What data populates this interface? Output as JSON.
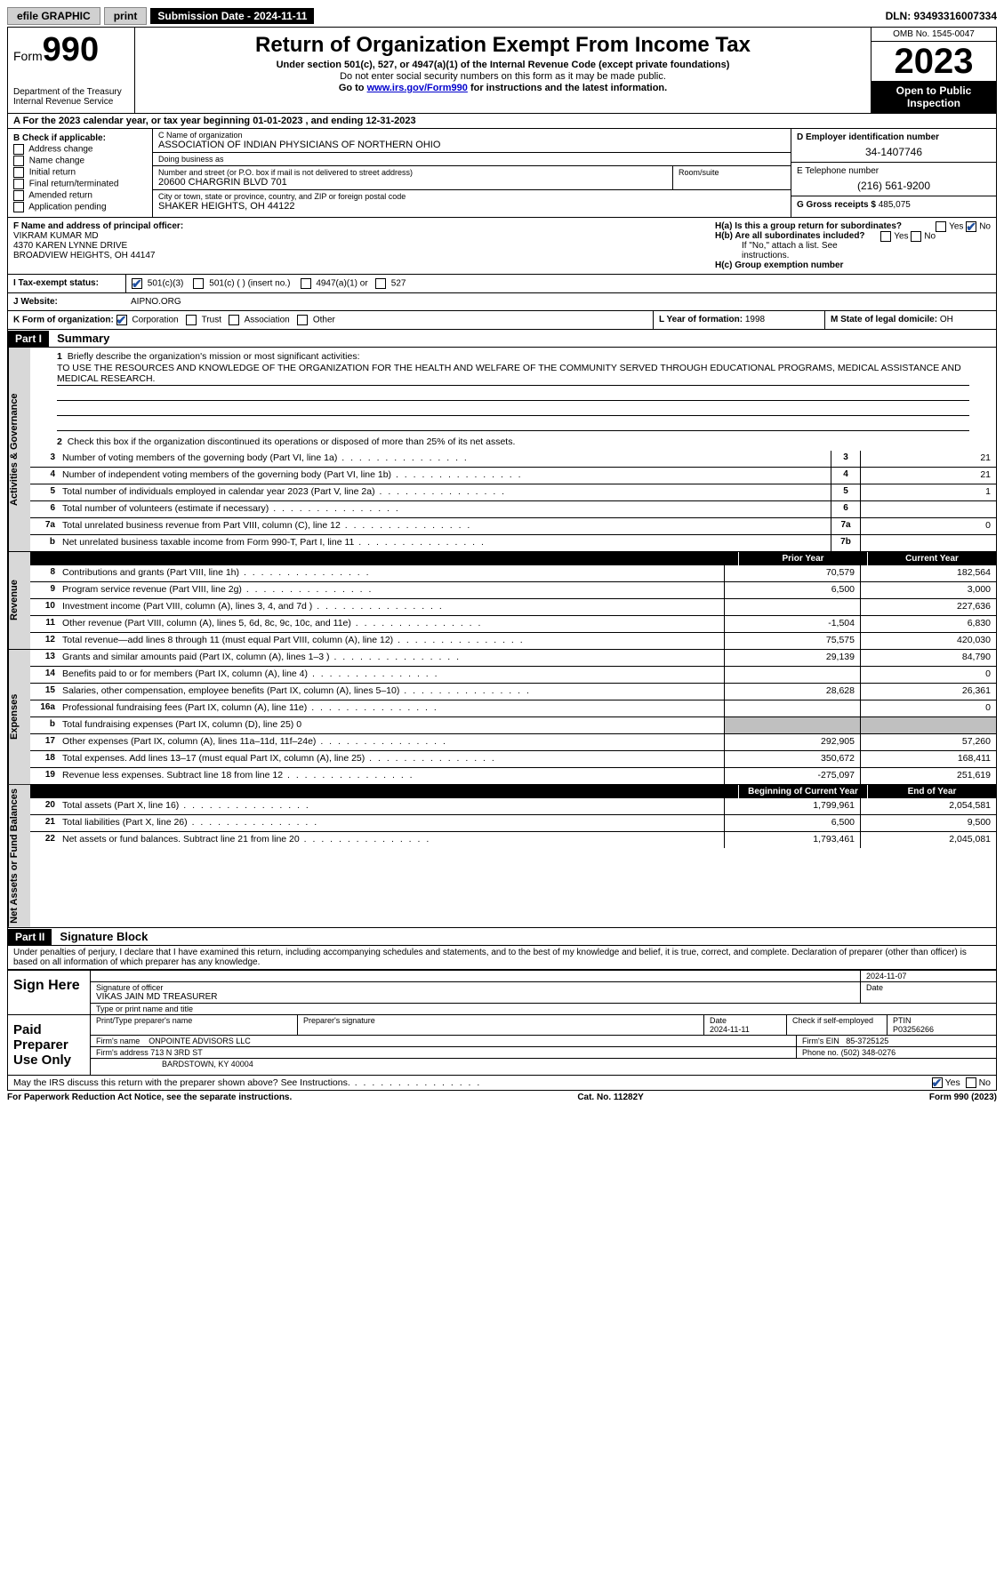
{
  "topbar": {
    "efile": "efile GRAPHIC",
    "print": "print",
    "submission": "Submission Date - 2024-11-11",
    "dln": "DLN: 93493316007334"
  },
  "header": {
    "form_prefix": "Form",
    "form_number": "990",
    "dept": "Department of the Treasury",
    "irs": "Internal Revenue Service",
    "title": "Return of Organization Exempt From Income Tax",
    "sub1": "Under section 501(c), 527, or 4947(a)(1) of the Internal Revenue Code (except private foundations)",
    "sub2": "Do not enter social security numbers on this form as it may be made public.",
    "sub3_pre": "Go to ",
    "sub3_link": "www.irs.gov/Form990",
    "sub3_post": " for instructions and the latest information.",
    "omb": "OMB No. 1545-0047",
    "year": "2023",
    "inspect": "Open to Public Inspection"
  },
  "row_a": "A For the 2023 calendar year, or tax year beginning 01-01-2023   , and ending 12-31-2023",
  "col_b": {
    "title": "B Check if applicable:",
    "items": [
      "Address change",
      "Name change",
      "Initial return",
      "Final return/terminated",
      "Amended return",
      "Application pending"
    ]
  },
  "col_c": {
    "name_label": "C Name of organization",
    "name": "ASSOCIATION OF INDIAN PHYSICIANS OF NORTHERN OHIO",
    "dba_label": "Doing business as",
    "dba": "",
    "street_label": "Number and street (or P.O. box if mail is not delivered to street address)",
    "street": "20600 CHARGRIN BLVD 701",
    "room_label": "Room/suite",
    "room": "",
    "city_label": "City or town, state or province, country, and ZIP or foreign postal code",
    "city": "SHAKER HEIGHTS, OH  44122"
  },
  "col_de": {
    "d_label": "D Employer identification number",
    "d_val": "34-1407746",
    "e_label": "E Telephone number",
    "e_val": "(216) 561-9200",
    "g_label": "G Gross receipts $",
    "g_val": "485,075"
  },
  "row_f": {
    "label": "F Name and address of principal officer:",
    "name": "VIKRAM KUMAR MD",
    "addr1": "4370 KAREN LYNNE DRIVE",
    "addr2": "BROADVIEW HEIGHTS, OH  44147"
  },
  "row_h": {
    "ha": "H(a) Is this a group return for subordinates?",
    "hb": "H(b) Are all subordinates included?",
    "hb_note": "If \"No,\" attach a list. See instructions.",
    "hc": "H(c) Group exemption number",
    "yes": "Yes",
    "no": "No"
  },
  "row_i": {
    "label": "I   Tax-exempt status:",
    "o1": "501(c)(3)",
    "o2": "501(c) (  ) (insert no.)",
    "o3": "4947(a)(1) or",
    "o4": "527"
  },
  "row_j": {
    "label": "J   Website:",
    "val": "AIPNO.ORG"
  },
  "row_k": {
    "label": "K Form of organization:",
    "o1": "Corporation",
    "o2": "Trust",
    "o3": "Association",
    "o4": "Other",
    "l_label": "L Year of formation:",
    "l_val": "1998",
    "m_label": "M State of legal domicile:",
    "m_val": "OH"
  },
  "part1": {
    "hdr": "Part I",
    "title": "Summary",
    "q1": "Briefly describe the organization's mission or most significant activities:",
    "mission": "TO USE THE RESOURCES AND KNOWLEDGE OF THE ORGANIZATION FOR THE HEALTH AND WELFARE OF THE COMMUNITY SERVED THROUGH EDUCATIONAL PROGRAMS, MEDICAL ASSISTANCE AND MEDICAL RESEARCH.",
    "q2": "Check this box      if the organization discontinued its operations or disposed of more than 25% of its net assets.",
    "tabs": {
      "gov": "Activities & Governance",
      "rev": "Revenue",
      "exp": "Expenses",
      "net": "Net Assets or Fund Balances"
    },
    "col_prior": "Prior Year",
    "col_curr": "Current Year",
    "col_begin": "Beginning of Current Year",
    "col_end": "End of Year",
    "lines_gov": [
      {
        "n": "3",
        "d": "Number of voting members of the governing body (Part VI, line 1a)",
        "box": "3",
        "v": "21"
      },
      {
        "n": "4",
        "d": "Number of independent voting members of the governing body (Part VI, line 1b)",
        "box": "4",
        "v": "21"
      },
      {
        "n": "5",
        "d": "Total number of individuals employed in calendar year 2023 (Part V, line 2a)",
        "box": "5",
        "v": "1"
      },
      {
        "n": "6",
        "d": "Total number of volunteers (estimate if necessary)",
        "box": "6",
        "v": ""
      },
      {
        "n": "7a",
        "d": "Total unrelated business revenue from Part VIII, column (C), line 12",
        "box": "7a",
        "v": "0"
      },
      {
        "n": "b",
        "d": "Net unrelated business taxable income from Form 990-T, Part I, line 11",
        "box": "7b",
        "v": ""
      }
    ],
    "lines_rev": [
      {
        "n": "8",
        "d": "Contributions and grants (Part VIII, line 1h)",
        "p": "70,579",
        "c": "182,564"
      },
      {
        "n": "9",
        "d": "Program service revenue (Part VIII, line 2g)",
        "p": "6,500",
        "c": "3,000"
      },
      {
        "n": "10",
        "d": "Investment income (Part VIII, column (A), lines 3, 4, and 7d )",
        "p": "",
        "c": "227,636"
      },
      {
        "n": "11",
        "d": "Other revenue (Part VIII, column (A), lines 5, 6d, 8c, 9c, 10c, and 11e)",
        "p": "-1,504",
        "c": "6,830"
      },
      {
        "n": "12",
        "d": "Total revenue—add lines 8 through 11 (must equal Part VIII, column (A), line 12)",
        "p": "75,575",
        "c": "420,030"
      }
    ],
    "lines_exp": [
      {
        "n": "13",
        "d": "Grants and similar amounts paid (Part IX, column (A), lines 1–3 )",
        "p": "29,139",
        "c": "84,790"
      },
      {
        "n": "14",
        "d": "Benefits paid to or for members (Part IX, column (A), line 4)",
        "p": "",
        "c": "0"
      },
      {
        "n": "15",
        "d": "Salaries, other compensation, employee benefits (Part IX, column (A), lines 5–10)",
        "p": "28,628",
        "c": "26,361"
      },
      {
        "n": "16a",
        "d": "Professional fundraising fees (Part IX, column (A), line 11e)",
        "p": "",
        "c": "0"
      },
      {
        "n": "b",
        "d": "Total fundraising expenses (Part IX, column (D), line 25) 0",
        "grey": true
      },
      {
        "n": "17",
        "d": "Other expenses (Part IX, column (A), lines 11a–11d, 11f–24e)",
        "p": "292,905",
        "c": "57,260"
      },
      {
        "n": "18",
        "d": "Total expenses. Add lines 13–17 (must equal Part IX, column (A), line 25)",
        "p": "350,672",
        "c": "168,411"
      },
      {
        "n": "19",
        "d": "Revenue less expenses. Subtract line 18 from line 12",
        "p": "-275,097",
        "c": "251,619"
      }
    ],
    "lines_net": [
      {
        "n": "20",
        "d": "Total assets (Part X, line 16)",
        "p": "1,799,961",
        "c": "2,054,581"
      },
      {
        "n": "21",
        "d": "Total liabilities (Part X, line 26)",
        "p": "6,500",
        "c": "9,500"
      },
      {
        "n": "22",
        "d": "Net assets or fund balances. Subtract line 21 from line 20",
        "p": "1,793,461",
        "c": "2,045,081"
      }
    ]
  },
  "part2": {
    "hdr": "Part II",
    "title": "Signature Block",
    "decl": "Under penalties of perjury, I declare that I have examined this return, including accompanying schedules and statements, and to the best of my knowledge and belief, it is true, correct, and complete. Declaration of preparer (other than officer) is based on all information of which preparer has any knowledge."
  },
  "sign": {
    "label": "Sign Here",
    "sig_label": "Signature of officer",
    "date_label": "Date",
    "date": "2024-11-07",
    "name": "VIKAS JAIN MD TREASURER",
    "name_label": "Type or print name and title"
  },
  "paid": {
    "label": "Paid Preparer Use Only",
    "h1": "Print/Type preparer's name",
    "h2": "Preparer's signature",
    "h3": "Date",
    "date": "2024-11-11",
    "h4": "Check      if self-employed",
    "h5": "PTIN",
    "ptin": "P03256266",
    "firm_label": "Firm's name",
    "firm": "ONPOINTE ADVISORS LLC",
    "ein_label": "Firm's EIN",
    "ein": "85-3725125",
    "addr_label": "Firm's address",
    "addr1": "713 N 3RD ST",
    "addr2": "BARDSTOWN, KY  40004",
    "phone_label": "Phone no.",
    "phone": "(502) 348-0276"
  },
  "discuss": "May the IRS discuss this return with the preparer shown above? See Instructions.",
  "footer": {
    "left": "For Paperwork Reduction Act Notice, see the separate instructions.",
    "mid": "Cat. No. 11282Y",
    "right": "Form 990 (2023)"
  }
}
